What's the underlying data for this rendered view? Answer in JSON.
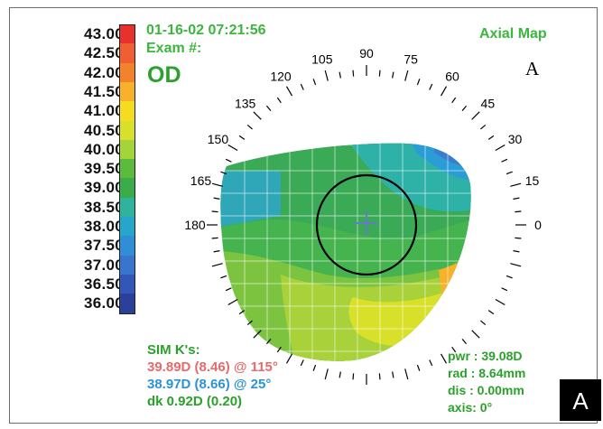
{
  "header": {
    "datetime": "01-16-02 07:21:56",
    "exam_label": "Exam #:",
    "eye": "OD",
    "map_title": "Axial Map",
    "panel_letter": "A"
  },
  "scale": {
    "values": [
      "43.00",
      "42.50",
      "42.00",
      "41.50",
      "41.00",
      "40.50",
      "40.00",
      "39.50",
      "39.00",
      "38.50",
      "38.00",
      "37.50",
      "37.00",
      "36.50",
      "36.00"
    ],
    "colors": [
      "#e8312d",
      "#ef5f33",
      "#f3832b",
      "#f8b12a",
      "#f4dd1e",
      "#d9e02a",
      "#a4d43a",
      "#5cbb3d",
      "#3aac4a",
      "#2fb39c",
      "#27a6cc",
      "#2f8ed6",
      "#3775cf",
      "#3357b9",
      "#2c3f9b"
    ]
  },
  "map": {
    "angle_labels": [
      "90",
      "105",
      "120",
      "135",
      "150",
      "165",
      "180",
      "75",
      "60",
      "45",
      "30",
      "15",
      "0"
    ],
    "colors": {
      "ring": "#000000",
      "cross": "#6a78c8",
      "ticks": "#000000",
      "angle_labels": "#000000"
    }
  },
  "sim_k": {
    "title": "SIM K's:",
    "k1": "39.89D (8.46) @ 115°",
    "k2": "38.97D (8.66) @ 25°",
    "dk": "dk  0.92D (0.20)"
  },
  "stats": {
    "pwr": "pwr : 39.08D",
    "rad": "rad :  8.64mm",
    "dis": "dis :  0.00mm",
    "axis": "axis:  0°"
  },
  "corner_label": "A"
}
